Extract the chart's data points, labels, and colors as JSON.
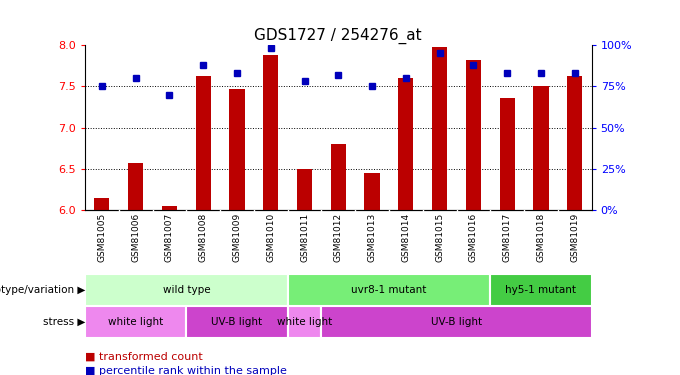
{
  "title": "GDS1727 / 254276_at",
  "samples": [
    "GSM81005",
    "GSM81006",
    "GSM81007",
    "GSM81008",
    "GSM81009",
    "GSM81010",
    "GSM81011",
    "GSM81012",
    "GSM81013",
    "GSM81014",
    "GSM81015",
    "GSM81016",
    "GSM81017",
    "GSM81018",
    "GSM81019"
  ],
  "transformed_count": [
    6.15,
    6.57,
    6.05,
    7.62,
    7.47,
    7.88,
    6.5,
    6.8,
    6.45,
    7.6,
    7.98,
    7.82,
    7.36,
    7.5,
    7.63
  ],
  "percentile_rank": [
    75,
    80,
    70,
    88,
    83,
    98,
    78,
    82,
    75,
    80,
    95,
    88,
    83,
    83,
    83
  ],
  "y_min": 6.0,
  "y_max": 8.0,
  "y_ticks": [
    6.0,
    6.5,
    7.0,
    7.5,
    8.0
  ],
  "right_y_ticks": [
    0,
    25,
    50,
    75,
    100
  ],
  "right_y_labels": [
    "0%",
    "25%",
    "50%",
    "75%",
    "100%"
  ],
  "bar_color": "#bb0000",
  "dot_color": "#0000bb",
  "plot_bg": "#ffffff",
  "tick_area_bg": "#cccccc",
  "genotype_groups": [
    {
      "label": "wild type",
      "start": 0,
      "end": 6,
      "color": "#ccffcc"
    },
    {
      "label": "uvr8-1 mutant",
      "start": 6,
      "end": 12,
      "color": "#77ee77"
    },
    {
      "label": "hy5-1 mutant",
      "start": 12,
      "end": 15,
      "color": "#44cc44"
    }
  ],
  "stress_groups": [
    {
      "label": "white light",
      "start": 0,
      "end": 3,
      "color": "#ee88ee"
    },
    {
      "label": "UV-B light",
      "start": 3,
      "end": 6,
      "color": "#cc44cc"
    },
    {
      "label": "white light",
      "start": 6,
      "end": 7,
      "color": "#ee88ee"
    },
    {
      "label": "UV-B light",
      "start": 7,
      "end": 15,
      "color": "#cc44cc"
    }
  ],
  "geno_label": "genotype/variation",
  "stress_label": "stress",
  "legend_bar_label": "transformed count",
  "legend_dot_label": "percentile rank within the sample",
  "bar_width": 0.45
}
